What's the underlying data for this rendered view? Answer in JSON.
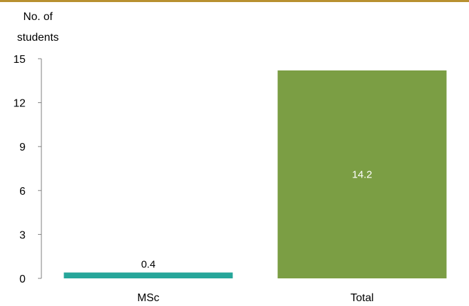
{
  "chart_data": {
    "type": "bar",
    "categories": [
      "MSc",
      "Total"
    ],
    "values": [
      0.4,
      14.2
    ],
    "data_labels": [
      "0.4",
      "14.2"
    ],
    "colors": [
      "#26a69a",
      "#7b9e44"
    ],
    "label_colors": [
      "#000000",
      "#ffffff"
    ],
    "ylabel_lines": [
      "No. of",
      "students"
    ],
    "ylim": [
      0,
      15
    ],
    "yticks": [
      0,
      3,
      6,
      9,
      12,
      15
    ],
    "grid": false,
    "legend": "none"
  }
}
